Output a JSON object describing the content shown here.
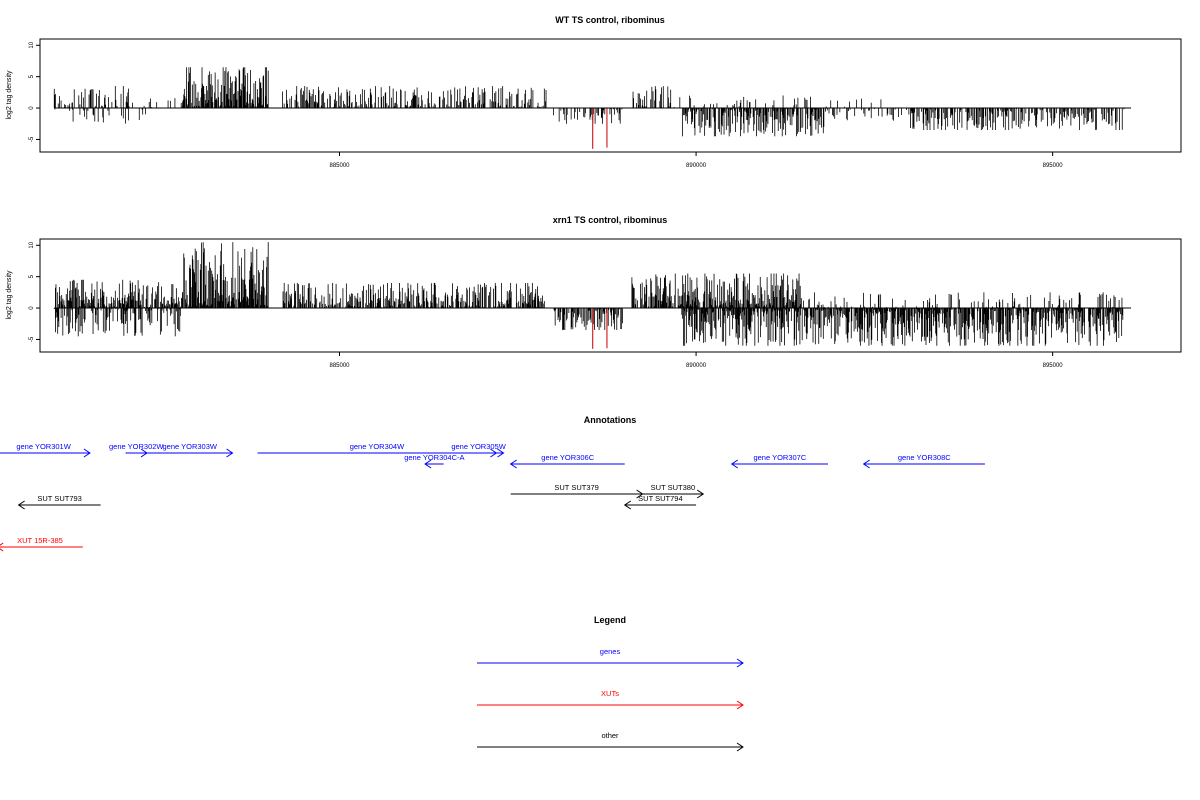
{
  "colors": {
    "signal": "#000000",
    "flagged": "#d62728",
    "gene": "#0000ff",
    "xut": "#ff0000",
    "other": "#000000"
  },
  "chart_data": [
    {
      "type": "bar",
      "title": "WT TS control, ribominus",
      "ylabel": "log2 tag density",
      "xlim": [
        880800,
        896800
      ],
      "ylim": [
        -7,
        11
      ],
      "yticks": [
        -5,
        0,
        5,
        10
      ],
      "xticks": [
        885000,
        890000,
        895000
      ],
      "regions": [
        {
          "start": 881000,
          "end": 882100,
          "strand": "+",
          "max": 3.5,
          "density": 0.45
        },
        {
          "start": 881000,
          "end": 882300,
          "strand": "-",
          "max": 2.5,
          "density": 0.25
        },
        {
          "start": 882100,
          "end": 882800,
          "strand": "+",
          "max": 2.0,
          "density": 0.15
        },
        {
          "start": 882800,
          "end": 884000,
          "strand": "+",
          "max": 6.5,
          "density": 0.95
        },
        {
          "start": 884200,
          "end": 887900,
          "strand": "+",
          "max": 3.5,
          "density": 0.55
        },
        {
          "start": 888000,
          "end": 889000,
          "strand": "-",
          "max": 2.5,
          "density": 0.35
        },
        {
          "start": 889100,
          "end": 889700,
          "strand": "+",
          "max": 3.5,
          "density": 0.6
        },
        {
          "start": 889700,
          "end": 891800,
          "strand": "+",
          "max": 2.0,
          "density": 0.15
        },
        {
          "start": 889800,
          "end": 891800,
          "strand": "-",
          "max": 4.5,
          "density": 0.7
        },
        {
          "start": 891800,
          "end": 892600,
          "strand": "+",
          "max": 1.5,
          "density": 0.1
        },
        {
          "start": 891800,
          "end": 893000,
          "strand": "-",
          "max": 2.0,
          "density": 0.25
        },
        {
          "start": 893000,
          "end": 896000,
          "strand": "-",
          "max": 3.5,
          "density": 0.6
        }
      ],
      "highlighted": [
        {
          "x": 888550,
          "y": -6.5
        },
        {
          "x": 888750,
          "y": -6.3
        }
      ]
    },
    {
      "type": "bar",
      "title": "xrn1 TS control, ribominus",
      "ylabel": "log2 tag density",
      "xlim": [
        880800,
        896800
      ],
      "ylim": [
        -7,
        11
      ],
      "yticks": [
        -5,
        0,
        5,
        10
      ],
      "xticks": [
        885000,
        890000,
        895000
      ],
      "regions": [
        {
          "start": 881000,
          "end": 882800,
          "strand": "+",
          "max": 4.5,
          "density": 0.8
        },
        {
          "start": 881000,
          "end": 882800,
          "strand": "-",
          "max": 4.5,
          "density": 0.5
        },
        {
          "start": 882800,
          "end": 884000,
          "strand": "+",
          "max": 10.5,
          "density": 1.0
        },
        {
          "start": 884200,
          "end": 887900,
          "strand": "+",
          "max": 4.0,
          "density": 0.7
        },
        {
          "start": 888000,
          "end": 889000,
          "strand": "-",
          "max": 3.5,
          "density": 0.7
        },
        {
          "start": 889100,
          "end": 891500,
          "strand": "+",
          "max": 5.5,
          "density": 0.8
        },
        {
          "start": 889800,
          "end": 896000,
          "strand": "-",
          "max": 6.0,
          "density": 0.85
        },
        {
          "start": 891500,
          "end": 896000,
          "strand": "+",
          "max": 2.5,
          "density": 0.2
        }
      ],
      "highlighted": [
        {
          "x": 888550,
          "y": -6.5
        },
        {
          "x": 888750,
          "y": -6.4
        }
      ]
    }
  ],
  "annotations": {
    "title": "Annotations",
    "xlim": [
      880800,
      896800
    ],
    "features": [
      {
        "label": "gene YOR301W",
        "start": 880200,
        "end": 881500,
        "strand": "+",
        "kind": "gene",
        "row": 0
      },
      {
        "label": "gene YOR302W",
        "start": 882000,
        "end": 882300,
        "strand": "+",
        "kind": "gene",
        "row": 0
      },
      {
        "label": "gene YOR303W",
        "start": 882300,
        "end": 883500,
        "strand": "+",
        "kind": "gene",
        "row": 0
      },
      {
        "label": "gene YOR304W",
        "start": 883850,
        "end": 887200,
        "strand": "+",
        "kind": "gene",
        "row": 0
      },
      {
        "label": "gene YOR305W",
        "start": 886600,
        "end": 887300,
        "strand": "+",
        "kind": "gene",
        "row": 0
      },
      {
        "label": "gene YOR304C-A",
        "start": 886200,
        "end": 886460,
        "strand": "-",
        "kind": "gene",
        "row": 1
      },
      {
        "label": "gene YOR306C",
        "start": 887400,
        "end": 889000,
        "strand": "-",
        "kind": "gene",
        "row": 1
      },
      {
        "label": "gene YOR307C",
        "start": 890500,
        "end": 891850,
        "strand": "-",
        "kind": "gene",
        "row": 1
      },
      {
        "label": "gene YOR308C",
        "start": 892350,
        "end": 894050,
        "strand": "-",
        "kind": "gene",
        "row": 1
      },
      {
        "label": "SUT SUT379",
        "start": 887400,
        "end": 889250,
        "strand": "+",
        "kind": "other",
        "row": 0
      },
      {
        "label": "SUT SUT380",
        "start": 889250,
        "end": 890100,
        "strand": "+",
        "kind": "other",
        "row": 0
      },
      {
        "label": "SUT SUT794",
        "start": 889000,
        "end": 890000,
        "strand": "-",
        "kind": "other",
        "row": 1
      },
      {
        "label": "SUT SUT793",
        "start": 880500,
        "end": 881650,
        "strand": "-",
        "kind": "other",
        "row": 2
      },
      {
        "label": "XUT 15R-385",
        "start": 880200,
        "end": 881400,
        "strand": "-",
        "kind": "xut",
        "row": 3
      }
    ]
  },
  "legend": {
    "title": "Legend",
    "items": [
      {
        "label": "genes",
        "kind": "gene"
      },
      {
        "label": "XUTs",
        "kind": "xut"
      },
      {
        "label": "other",
        "kind": "other"
      }
    ]
  }
}
